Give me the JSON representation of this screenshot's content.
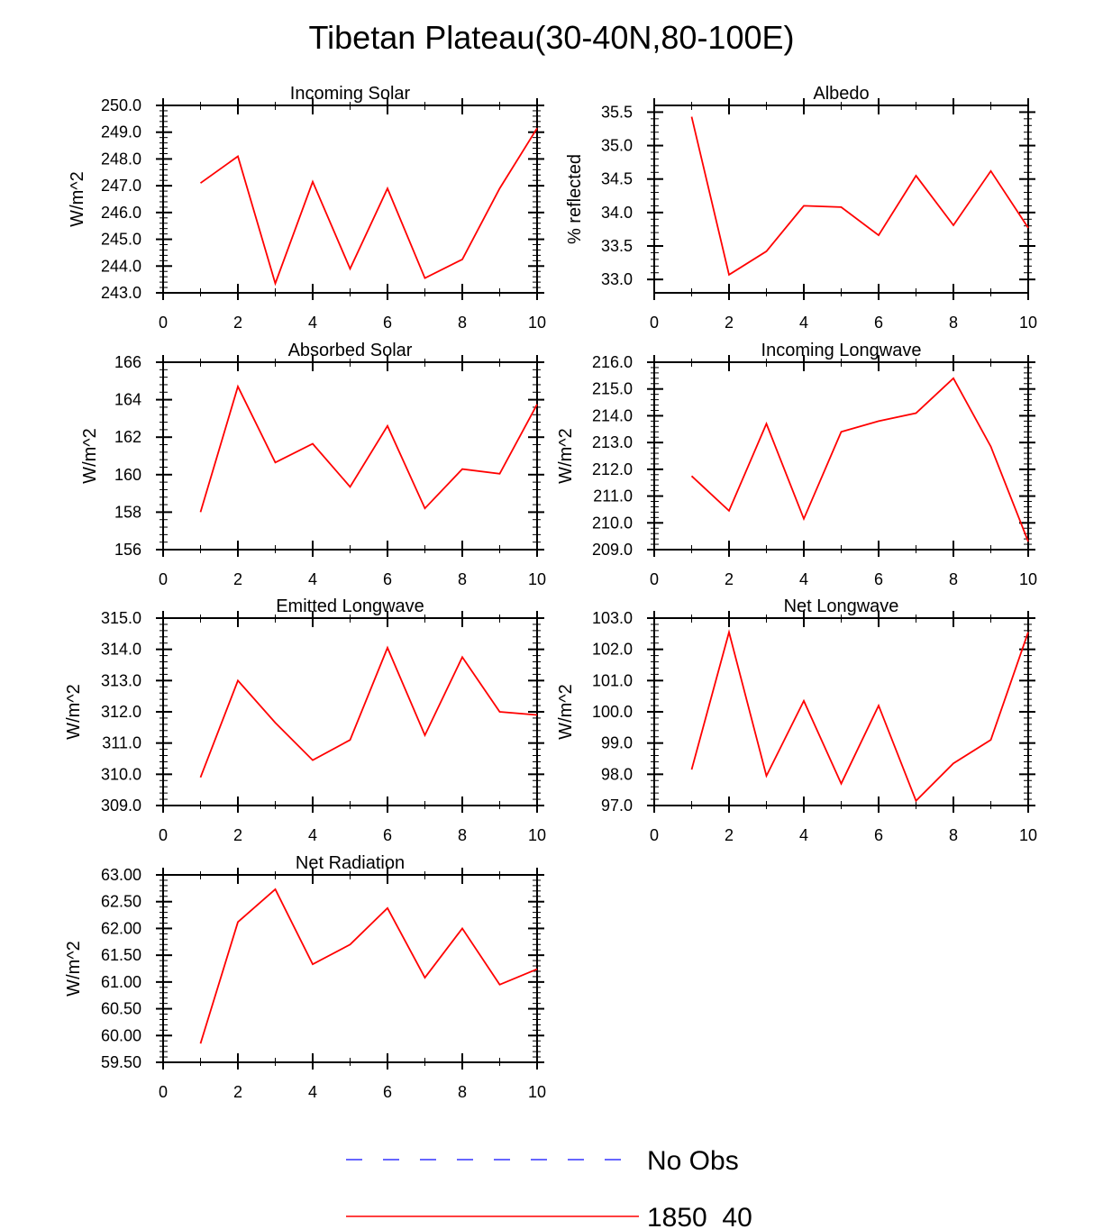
{
  "figure": {
    "title": "Tibetan Plateau(30-40N,80-100E)"
  },
  "legend": {
    "position": "bottom-center",
    "items": [
      {
        "label": "No Obs",
        "color": "#3333ff",
        "style": "dashed"
      },
      {
        "label": "1850_40",
        "color": "#ff0000",
        "style": "solid"
      }
    ]
  },
  "chart_data": [
    {
      "type": "line",
      "title": "Incoming Solar",
      "xlabel": "",
      "ylabel": "W/m^2",
      "xlim": [
        0,
        10
      ],
      "ylim": [
        243.0,
        250.0
      ],
      "xticks": [
        0,
        2,
        4,
        6,
        8,
        10
      ],
      "xtick_labels": [
        "0",
        "2",
        "4",
        "6",
        "8",
        "10"
      ],
      "yticks": [
        243.0,
        244.0,
        245.0,
        246.0,
        247.0,
        248.0,
        249.0,
        250.0
      ],
      "ytick_labels": [
        "243.0",
        "244.0",
        "245.0",
        "246.0",
        "247.0",
        "248.0",
        "249.0",
        "250.0"
      ],
      "series": [
        {
          "name": "1850_40",
          "color": "#ff0000",
          "x": [
            1,
            2,
            3,
            4,
            5,
            6,
            7,
            8,
            9,
            10
          ],
          "values": [
            247.1,
            248.1,
            243.35,
            247.15,
            243.9,
            246.9,
            243.55,
            244.25,
            246.9,
            249.15
          ]
        }
      ]
    },
    {
      "type": "line",
      "title": "Albedo",
      "xlabel": "",
      "ylabel": "% reflected",
      "xlim": [
        0,
        10
      ],
      "ylim": [
        32.8,
        35.6
      ],
      "xticks": [
        0,
        2,
        4,
        6,
        8,
        10
      ],
      "xtick_labels": [
        "0",
        "2",
        "4",
        "6",
        "8",
        "10"
      ],
      "yticks": [
        33.0,
        33.5,
        34.0,
        34.5,
        35.0,
        35.5
      ],
      "ytick_labels": [
        "33.0",
        "33.5",
        "34.0",
        "34.5",
        "35.0",
        "35.5"
      ],
      "series": [
        {
          "name": "1850_40",
          "color": "#ff0000",
          "x": [
            1,
            2,
            3,
            4,
            5,
            6,
            7,
            8,
            9,
            10
          ],
          "values": [
            35.43,
            33.07,
            33.42,
            34.1,
            34.08,
            33.66,
            34.55,
            33.81,
            34.62,
            33.77
          ]
        }
      ]
    },
    {
      "type": "line",
      "title": "Absorbed Solar",
      "xlabel": "",
      "ylabel": "W/m^2",
      "xlim": [
        0,
        10
      ],
      "ylim": [
        156,
        166
      ],
      "xticks": [
        0,
        2,
        4,
        6,
        8,
        10
      ],
      "xtick_labels": [
        "0",
        "2",
        "4",
        "6",
        "8",
        "10"
      ],
      "yticks": [
        156,
        158,
        160,
        162,
        164,
        166
      ],
      "ytick_labels": [
        "156",
        "158",
        "160",
        "162",
        "164",
        "166"
      ],
      "series": [
        {
          "name": "1850_40",
          "color": "#ff0000",
          "x": [
            1,
            2,
            3,
            4,
            5,
            6,
            7,
            8,
            9,
            10
          ],
          "values": [
            158.0,
            164.7,
            160.65,
            161.65,
            159.35,
            162.6,
            158.2,
            160.3,
            160.05,
            163.75
          ]
        }
      ]
    },
    {
      "type": "line",
      "title": "Incoming Longwave",
      "xlabel": "",
      "ylabel": "W/m^2",
      "xlim": [
        0,
        10
      ],
      "ylim": [
        209.0,
        216.0
      ],
      "xticks": [
        0,
        2,
        4,
        6,
        8,
        10
      ],
      "xtick_labels": [
        "0",
        "2",
        "4",
        "6",
        "8",
        "10"
      ],
      "yticks": [
        209.0,
        210.0,
        211.0,
        212.0,
        213.0,
        214.0,
        215.0,
        216.0
      ],
      "ytick_labels": [
        "209.0",
        "210.0",
        "211.0",
        "212.0",
        "213.0",
        "214.0",
        "215.0",
        "216.0"
      ],
      "series": [
        {
          "name": "1850_40",
          "color": "#ff0000",
          "x": [
            1,
            2,
            3,
            4,
            5,
            6,
            7,
            8,
            9,
            10
          ],
          "values": [
            211.75,
            210.45,
            213.7,
            210.15,
            213.4,
            213.8,
            214.1,
            215.4,
            212.85,
            209.3
          ]
        }
      ]
    },
    {
      "type": "line",
      "title": "Emitted Longwave",
      "xlabel": "",
      "ylabel": "W/m^2",
      "xlim": [
        0,
        10
      ],
      "ylim": [
        309.0,
        315.0
      ],
      "xticks": [
        0,
        2,
        4,
        6,
        8,
        10
      ],
      "xtick_labels": [
        "0",
        "2",
        "4",
        "6",
        "8",
        "10"
      ],
      "yticks": [
        309.0,
        310.0,
        311.0,
        312.0,
        313.0,
        314.0,
        315.0
      ],
      "ytick_labels": [
        "309.0",
        "310.0",
        "311.0",
        "312.0",
        "313.0",
        "314.0",
        "315.0"
      ],
      "series": [
        {
          "name": "1850_40",
          "color": "#ff0000",
          "x": [
            1,
            2,
            3,
            4,
            5,
            6,
            7,
            8,
            9,
            10
          ],
          "values": [
            309.9,
            313.0,
            311.65,
            310.45,
            311.1,
            314.05,
            311.25,
            313.75,
            312.0,
            311.9
          ]
        }
      ]
    },
    {
      "type": "line",
      "title": "Net Longwave",
      "xlabel": "",
      "ylabel": "W/m^2",
      "xlim": [
        0,
        10
      ],
      "ylim": [
        97.0,
        103.0
      ],
      "xticks": [
        0,
        2,
        4,
        6,
        8,
        10
      ],
      "xtick_labels": [
        "0",
        "2",
        "4",
        "6",
        "8",
        "10"
      ],
      "yticks": [
        97.0,
        98.0,
        99.0,
        100.0,
        101.0,
        102.0,
        103.0
      ],
      "ytick_labels": [
        "97.0",
        "98.0",
        "99.0",
        "100.0",
        "101.0",
        "102.0",
        "103.0"
      ],
      "series": [
        {
          "name": "1850_40",
          "color": "#ff0000",
          "x": [
            1,
            2,
            3,
            4,
            5,
            6,
            7,
            8,
            9,
            10
          ],
          "values": [
            98.15,
            102.55,
            97.95,
            100.35,
            97.7,
            100.2,
            97.15,
            98.35,
            99.1,
            102.55
          ]
        }
      ]
    },
    {
      "type": "line",
      "title": "Net Radiation",
      "xlabel": "",
      "ylabel": "W/m^2",
      "xlim": [
        0,
        10
      ],
      "ylim": [
        59.5,
        63.0
      ],
      "xticks": [
        0,
        2,
        4,
        6,
        8,
        10
      ],
      "xtick_labels": [
        "0",
        "2",
        "4",
        "6",
        "8",
        "10"
      ],
      "yticks": [
        59.5,
        60.0,
        60.5,
        61.0,
        61.5,
        62.0,
        62.5,
        63.0
      ],
      "ytick_labels": [
        "59.50",
        "60.00",
        "60.50",
        "61.00",
        "61.50",
        "62.00",
        "62.50",
        "63.00"
      ],
      "series": [
        {
          "name": "1850_40",
          "color": "#ff0000",
          "x": [
            1,
            2,
            3,
            4,
            5,
            6,
            7,
            8,
            9,
            10
          ],
          "values": [
            59.85,
            62.12,
            62.73,
            61.33,
            61.7,
            62.38,
            61.08,
            62.0,
            60.95,
            61.24
          ]
        }
      ]
    }
  ]
}
